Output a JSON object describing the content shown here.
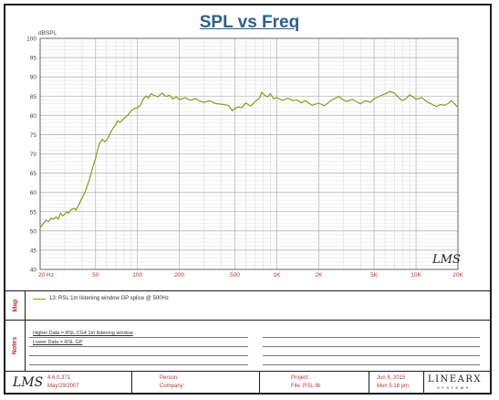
{
  "chart_data": {
    "type": "line",
    "title": "SPL vs Freq",
    "ylabel": "dBSPL",
    "xscale": "log",
    "xlim": [
      20,
      20000
    ],
    "ylim": [
      40,
      100
    ],
    "grid": true,
    "x_tick_labels": [
      "20 Hz",
      "50",
      "100",
      "200",
      "500",
      "1K",
      "2K",
      "5K",
      "10K",
      "20K"
    ],
    "x_tick_values": [
      20,
      50,
      100,
      200,
      500,
      1000,
      2000,
      5000,
      10000,
      20000
    ],
    "y_tick_labels": [
      "40",
      "45",
      "50",
      "55",
      "60",
      "65",
      "70",
      "75",
      "80",
      "85",
      "90",
      "95",
      "100"
    ],
    "series": [
      {
        "name": "13: RSL 1m listening window GP splice @ 500Hz",
        "color": "#8a9a1c",
        "points": [
          [
            20,
            50.8
          ],
          [
            21,
            51.8
          ],
          [
            22,
            52.8
          ],
          [
            23,
            52.4
          ],
          [
            24,
            53.3
          ],
          [
            25,
            53.0
          ],
          [
            26,
            53.6
          ],
          [
            27,
            53.1
          ],
          [
            28,
            54.6
          ],
          [
            29,
            53.9
          ],
          [
            30,
            54.3
          ],
          [
            31,
            55.0
          ],
          [
            32,
            54.6
          ],
          [
            33,
            55.4
          ],
          [
            35,
            55.9
          ],
          [
            36,
            55.4
          ],
          [
            38,
            56.8
          ],
          [
            40,
            58.6
          ],
          [
            42,
            60.0
          ],
          [
            45,
            63.2
          ],
          [
            48,
            66.8
          ],
          [
            50,
            68.9
          ],
          [
            53,
            72.5
          ],
          [
            56,
            73.8
          ],
          [
            58,
            73.2
          ],
          [
            60,
            73.5
          ],
          [
            63,
            75.0
          ],
          [
            66,
            76.4
          ],
          [
            70,
            77.6
          ],
          [
            72,
            78.6
          ],
          [
            75,
            78.2
          ],
          [
            80,
            79.2
          ],
          [
            85,
            80.0
          ],
          [
            90,
            81.2
          ],
          [
            95,
            81.8
          ],
          [
            100,
            82.0
          ],
          [
            105,
            82.6
          ],
          [
            110,
            84.2
          ],
          [
            115,
            85.0
          ],
          [
            120,
            84.5
          ],
          [
            125,
            85.6
          ],
          [
            130,
            85.3
          ],
          [
            140,
            84.8
          ],
          [
            150,
            85.8
          ],
          [
            160,
            84.9
          ],
          [
            170,
            85.2
          ],
          [
            180,
            84.3
          ],
          [
            190,
            84.8
          ],
          [
            200,
            84.1
          ],
          [
            220,
            84.6
          ],
          [
            240,
            83.9
          ],
          [
            260,
            84.4
          ],
          [
            280,
            83.7
          ],
          [
            300,
            83.4
          ],
          [
            330,
            83.8
          ],
          [
            360,
            83.1
          ],
          [
            400,
            82.9
          ],
          [
            450,
            82.6
          ],
          [
            480,
            81.2
          ],
          [
            500,
            81.8
          ],
          [
            530,
            82.2
          ],
          [
            560,
            82.0
          ],
          [
            600,
            83.2
          ],
          [
            650,
            82.4
          ],
          [
            700,
            83.6
          ],
          [
            750,
            84.4
          ],
          [
            780,
            86.0
          ],
          [
            820,
            85.2
          ],
          [
            860,
            84.8
          ],
          [
            900,
            85.6
          ],
          [
            950,
            84.3
          ],
          [
            1000,
            84.6
          ],
          [
            1100,
            83.9
          ],
          [
            1200,
            84.5
          ],
          [
            1300,
            83.8
          ],
          [
            1400,
            84.0
          ],
          [
            1500,
            83.3
          ],
          [
            1600,
            83.8
          ],
          [
            1800,
            82.6
          ],
          [
            2000,
            83.2
          ],
          [
            2200,
            82.5
          ],
          [
            2400,
            83.6
          ],
          [
            2600,
            84.4
          ],
          [
            2800,
            84.9
          ],
          [
            3000,
            84.0
          ],
          [
            3200,
            83.6
          ],
          [
            3500,
            84.2
          ],
          [
            3800,
            83.4
          ],
          [
            4000,
            83.0
          ],
          [
            4300,
            83.8
          ],
          [
            4700,
            83.4
          ],
          [
            5000,
            84.3
          ],
          [
            5500,
            85.0
          ],
          [
            6000,
            85.6
          ],
          [
            6500,
            86.2
          ],
          [
            7000,
            85.8
          ],
          [
            7500,
            84.6
          ],
          [
            8000,
            83.8
          ],
          [
            8500,
            84.4
          ],
          [
            9000,
            85.3
          ],
          [
            9500,
            84.8
          ],
          [
            10000,
            84.2
          ],
          [
            11000,
            84.6
          ],
          [
            12000,
            83.5
          ],
          [
            13000,
            82.9
          ],
          [
            14000,
            82.3
          ],
          [
            15000,
            82.8
          ],
          [
            16000,
            82.6
          ],
          [
            17000,
            83.1
          ],
          [
            18000,
            83.8
          ],
          [
            19000,
            82.9
          ],
          [
            20000,
            82.1
          ]
        ]
      }
    ]
  },
  "map_panel": {
    "label": "Map",
    "legend_entry": "13: RSL 1m listening window GP splice @ 500Hz"
  },
  "notes_panel": {
    "label": "Notes",
    "higher_data": "Higher Data = RSL CG4 1m listening window",
    "lower_data": "Lower  Data = RSL GP"
  },
  "footer": {
    "version": "4.6.0.371",
    "version_date": "May/29/2007",
    "person_label": "Person:",
    "company_label": "Company:",
    "project_label": "Project:",
    "file_label": "File: RSL.lib",
    "date": "Jun  8, 2015",
    "time": "Mon  5:18 pm",
    "brand_name": "LINEARX",
    "brand_sub": "SYSTEMS"
  },
  "watermark": "LMS",
  "footer_logo": "LMS"
}
